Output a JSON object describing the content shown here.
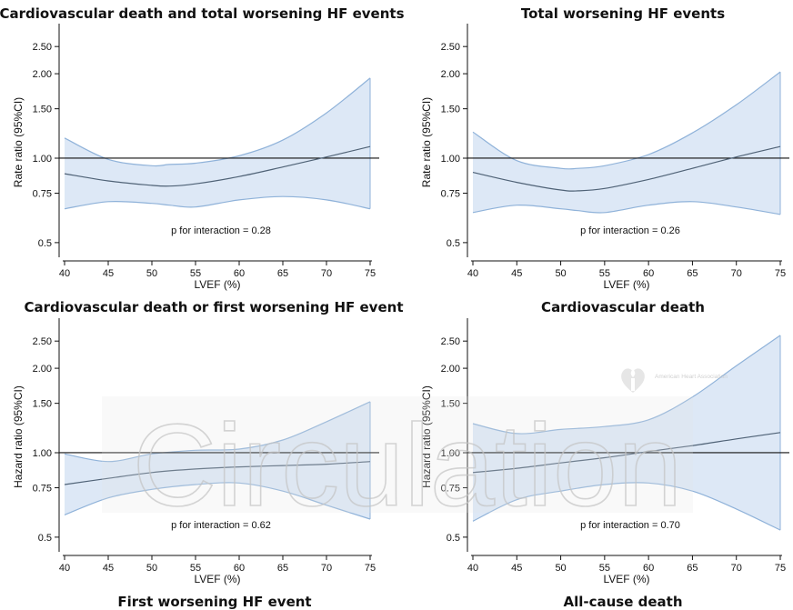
{
  "chart_data": [
    {
      "type": "line",
      "title": "Cardiovascular death and total worsening HF events",
      "xlabel": "LVEF (%)",
      "ylabel": "Rate ratio (95%CI)",
      "y_scale": "log",
      "xlim": [
        40,
        75
      ],
      "ylim": [
        0.45,
        2.8
      ],
      "xticks": [
        "40",
        "45",
        "50",
        "55",
        "60",
        "65",
        "70",
        "75"
      ],
      "yticks": [
        {
          "value": 0.5,
          "label": "0.5"
        },
        {
          "value": 0.75,
          "label": "0.75"
        },
        {
          "value": 1.0,
          "label": "1.00"
        },
        {
          "value": 1.5,
          "label": "1.50"
        },
        {
          "value": 2.0,
          "label": "2.00"
        },
        {
          "value": 2.5,
          "label": "2.50"
        }
      ],
      "reference_line": 1.0,
      "annotation": "p for interaction = 0.28",
      "x": [
        40,
        45,
        50,
        52,
        55,
        60,
        65,
        70,
        75
      ],
      "estimate": [
        0.88,
        0.83,
        0.8,
        0.795,
        0.81,
        0.86,
        0.93,
        1.01,
        1.1
      ],
      "lower": [
        0.66,
        0.7,
        0.69,
        0.68,
        0.67,
        0.71,
        0.73,
        0.71,
        0.66
      ],
      "upper": [
        1.18,
        0.99,
        0.94,
        0.95,
        0.96,
        1.02,
        1.16,
        1.45,
        1.93
      ]
    },
    {
      "type": "line",
      "title": "Total worsening HF events",
      "xlabel": "LVEF (%)",
      "ylabel": "Rate ratio (95%CI)",
      "y_scale": "log",
      "xlim": [
        40,
        75
      ],
      "ylim": [
        0.45,
        2.8
      ],
      "xticks": [
        "40",
        "45",
        "50",
        "55",
        "60",
        "65",
        "70",
        "75"
      ],
      "yticks": [
        {
          "value": 0.5,
          "label": "0.5"
        },
        {
          "value": 0.75,
          "label": "0.75"
        },
        {
          "value": 1.0,
          "label": "1.00"
        },
        {
          "value": 1.5,
          "label": "1.50"
        },
        {
          "value": 2.0,
          "label": "2.00"
        },
        {
          "value": 2.5,
          "label": "2.50"
        }
      ],
      "reference_line": 1.0,
      "annotation": "p for interaction = 0.26",
      "x": [
        40,
        45,
        50,
        52,
        55,
        60,
        65,
        70,
        75
      ],
      "estimate": [
        0.89,
        0.82,
        0.77,
        0.765,
        0.78,
        0.84,
        0.92,
        1.01,
        1.1
      ],
      "lower": [
        0.64,
        0.68,
        0.66,
        0.65,
        0.64,
        0.68,
        0.7,
        0.67,
        0.63
      ],
      "upper": [
        1.24,
        0.98,
        0.92,
        0.92,
        0.94,
        1.03,
        1.23,
        1.55,
        2.03
      ]
    },
    {
      "type": "line",
      "title": "Cardiovascular death or first worsening HF event",
      "xlabel": "LVEF (%)",
      "ylabel": "Hazard ratio (95%CI)",
      "y_scale": "log",
      "xlim": [
        40,
        75
      ],
      "ylim": [
        0.45,
        2.8
      ],
      "xticks": [
        "40",
        "45",
        "50",
        "55",
        "60",
        "65",
        "70",
        "75"
      ],
      "yticks": [
        {
          "value": 0.5,
          "label": "0.5"
        },
        {
          "value": 0.75,
          "label": "0.75"
        },
        {
          "value": 1.0,
          "label": "1.00"
        },
        {
          "value": 1.5,
          "label": "1.50"
        },
        {
          "value": 2.0,
          "label": "2.00"
        },
        {
          "value": 2.5,
          "label": "2.50"
        }
      ],
      "reference_line": 1.0,
      "annotation": "p for interaction = 0.62",
      "x": [
        40,
        45,
        50,
        55,
        60,
        65,
        70,
        75
      ],
      "estimate": [
        0.77,
        0.81,
        0.85,
        0.875,
        0.89,
        0.9,
        0.91,
        0.93
      ],
      "lower": [
        0.6,
        0.69,
        0.74,
        0.77,
        0.78,
        0.73,
        0.65,
        0.58
      ],
      "upper": [
        0.99,
        0.93,
        0.99,
        1.02,
        1.03,
        1.11,
        1.29,
        1.52
      ]
    },
    {
      "type": "line",
      "title": "Cardiovascular death",
      "xlabel": "LVEF (%)",
      "ylabel": "Hazard ratio (95%CI)",
      "y_scale": "log",
      "xlim": [
        40,
        75
      ],
      "ylim": [
        0.45,
        2.8
      ],
      "xticks": [
        "40",
        "45",
        "50",
        "55",
        "60",
        "65",
        "70",
        "75"
      ],
      "yticks": [
        {
          "value": 0.5,
          "label": "0.5"
        },
        {
          "value": 0.75,
          "label": "0.75"
        },
        {
          "value": 1.0,
          "label": "1.00"
        },
        {
          "value": 1.5,
          "label": "1.50"
        },
        {
          "value": 2.0,
          "label": "2.00"
        },
        {
          "value": 2.5,
          "label": "2.50"
        }
      ],
      "reference_line": 1.0,
      "annotation": "p for interaction = 0.70",
      "x": [
        40,
        45,
        50,
        55,
        60,
        65,
        70,
        75
      ],
      "estimate": [
        0.85,
        0.88,
        0.92,
        0.96,
        1.01,
        1.06,
        1.12,
        1.18
      ],
      "lower": [
        0.57,
        0.68,
        0.73,
        0.77,
        0.78,
        0.73,
        0.63,
        0.53
      ],
      "upper": [
        1.27,
        1.17,
        1.21,
        1.24,
        1.31,
        1.58,
        2.04,
        2.62
      ]
    },
    {
      "type": "line",
      "title": "First worsening HF event"
    },
    {
      "type": "line",
      "title": "All-cause death"
    }
  ],
  "watermark": {
    "text": "Circulation",
    "logo_text": "American Heart Association"
  },
  "colors": {
    "ci_fill": "#dde8f6",
    "ci_edge": "#8fb2d9",
    "estimate_line": "#4f6276",
    "reference_line": "#111111",
    "axis": "#111111",
    "watermark": "#b8b8b8"
  }
}
